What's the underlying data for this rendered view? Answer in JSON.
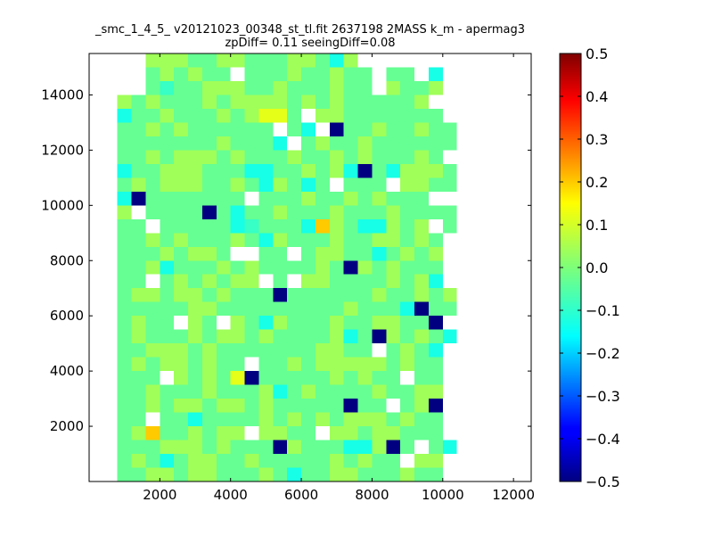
{
  "chart_data": {
    "type": "heatmap",
    "title_line1": "_smc_1_4_5_ v20121023_00348_st_tl.fit 2637198 2MASS k_m - apermag3",
    "title_line2": "zpDiff= 0.11 seeingDiff=0.08",
    "xlabel": "",
    "ylabel": "",
    "xlim": [
      0,
      12500
    ],
    "ylim": [
      0,
      15500
    ],
    "x_ticks": [
      2000,
      4000,
      6000,
      8000,
      10000,
      12000
    ],
    "y_ticks": [
      2000,
      4000,
      6000,
      8000,
      10000,
      12000,
      14000
    ],
    "x_tick_labels": [
      "2000",
      "4000",
      "6000",
      "8000",
      "10000",
      "12000"
    ],
    "y_tick_labels": [
      "2000",
      "4000",
      "6000",
      "8000",
      "10000",
      "12000",
      "14000"
    ],
    "grid": false,
    "colormap": "jet",
    "clim": [
      -0.5,
      0.5
    ],
    "colorbar_ticks": [
      0.5,
      0.4,
      0.3,
      0.2,
      0.1,
      0.0,
      -0.1,
      -0.2,
      -0.3,
      -0.4,
      -0.5
    ],
    "colorbar_tick_labels": [
      "0.5",
      "0.4",
      "0.3",
      "0.2",
      "0.1",
      "0.0",
      "−0.1",
      "−0.2",
      "−0.3",
      "−0.4",
      "−0.5"
    ],
    "cell_width": 400,
    "cell_height": 500,
    "rows_from_top": [
      "..dddccddcccddcsd.......",
      "..cdcdcc.cccdccdcc.cc.s.",
      "..ctccdddccdcccdcc.dccd.",
      "dcdcccdcddddcdcdcccccd..",
      "sccdcccdcdeec.ddccccccc.",
      "ccdcdcccccc.cs.bccdccdcc",
      "cccccccdcccs.cdccdcccccc",
      "ccdcdddcdcccdccdcdcccdc.",
      "sccdddcccssccdcdsbcsdddc",
      "cdcdddccdcsdcsc.ccc.ddcc",
      "sbccccccc.cccdccdcdccc..",
      "d.ccccbcsccdcccdcccdcccc",
      "cc.cccccstcccsfdcssdcd.c",
      "ccdcdcccdcsdcccdccddcdc.",
      "cccdcddc..cc.cddccscdcd.",
      "ccdscccdcdccccdcbdcdccc.",
      "cc.cdcdcdd.c.ddccccdcds.",
      "cddcddcdcccbccccccdccdcd",
      "cccccddcccccccccdcccsbcc",
      "cdcc.dc.dcsdcccdccddccb.",
      "cdcccdcddcdccccdscbdcdcs",
      "ccdddcdcccccccddcc.cdcs.",
      "cdcddcdcc.ccdcdddddcdcc.",
      "ccc.dcdcebcccccdcdcc.cc.",
      "ccdcccdcccdscdccccdccdd.",
      "ccdcddcddcdcccccbcc.cdb.",
      "cc.ccsccccdcdcdcdddcdcc.",
      "cdfccdcdd.ddcc.ddcddccc.",
      "cccdddcdcccbdcccssdbc.cs",
      "cdcscddccdcccccdcdcc.dd.",
      "ccddcddcccdcsccddcccdcc.",
      "tccdccdcdcccbcdcc.cddtc."
    ],
    "cell_values": {
      "c": -0.03,
      "d": 0.04,
      "s": -0.13,
      "t": -0.09,
      "e": 0.12,
      "f": 0.2,
      "b": -0.5
    },
    "x_start": 800
  }
}
